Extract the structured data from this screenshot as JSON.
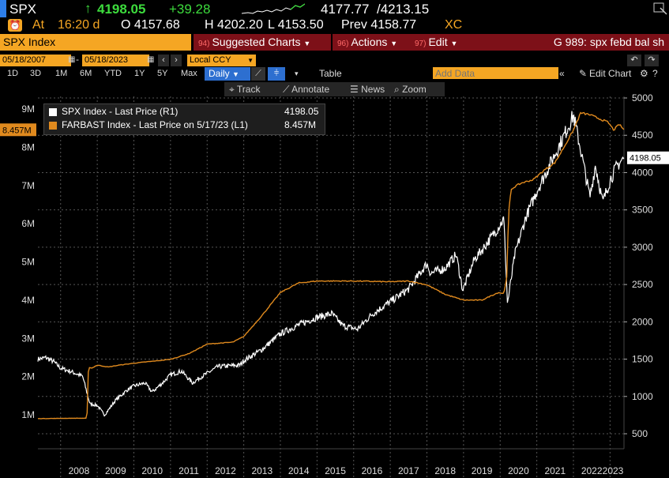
{
  "header": {
    "ticker": "SPX",
    "last": "4198.05",
    "change": "+39.28",
    "range_low": "4177.77",
    "range_high": "/4213.15",
    "at_label": "At",
    "time": "16:20 d",
    "open": "O 4157.68",
    "high": "H 4202.20",
    "low": "L 4153.50",
    "prev": "Prev 4158.77",
    "xc": "XC"
  },
  "menu": {
    "security": "SPX Index",
    "suggested": {
      "num": "94)",
      "label": "Suggested Charts"
    },
    "actions": {
      "num": "96)",
      "label": "Actions"
    },
    "edit": {
      "num": "97)",
      "label": "Edit"
    },
    "command": "G 989: spx febd bal sh"
  },
  "controls": {
    "start_date": "05/18/2007",
    "end_date": "05/18/2023",
    "currency": "Local CCY",
    "periods": [
      "1D",
      "3D",
      "1M",
      "6M",
      "YTD",
      "1Y",
      "5Y",
      "Max"
    ],
    "frequency": "Daily",
    "table": "Table",
    "add_data_placeholder": "Add Data",
    "edit_chart": "Edit Chart"
  },
  "toolbar": {
    "track": "Track",
    "annotate": "Annotate",
    "news": "News",
    "zoom": "Zoom"
  },
  "colors": {
    "spx": "#ffffff",
    "farbast": "#e08a1e",
    "background": "#000000",
    "grid": "#555555",
    "accent": "#f5a623",
    "menu_red": "#7d1018"
  },
  "chart_data": {
    "type": "line",
    "legend": [
      {
        "name": "SPX Index - Last Price (R1)",
        "value": "4198.05",
        "color": "#ffffff"
      },
      {
        "name": "FARBAST Index - Last Price on 5/17/23 (L1)",
        "value": "8.457M",
        "color": "#e08a1e"
      }
    ],
    "x_ticks": [
      "2008",
      "2009",
      "2010",
      "2011",
      "2012",
      "2013",
      "2014",
      "2015",
      "2016",
      "2017",
      "2018",
      "2019",
      "2020",
      "2021",
      "2022",
      "2023"
    ],
    "left_axis": {
      "ticks": [
        "1M",
        "2M",
        "3M",
        "4M",
        "5M",
        "6M",
        "7M",
        "8M",
        "9M"
      ],
      "range": [
        0.5,
        9.5
      ],
      "last_label": "8.457M"
    },
    "right_axis": {
      "ticks": [
        "500",
        "1000",
        "1500",
        "2000",
        "2500",
        "3000",
        "3500",
        "4000",
        "4500",
        "5000"
      ],
      "range": [
        500,
        5000
      ],
      "last_label": "4198.05"
    },
    "series": [
      {
        "name": "SPX Index - Last Price (R1)",
        "axis": "right",
        "x": [
          2007.38,
          2007.6,
          2007.8,
          2008.0,
          2008.3,
          2008.6,
          2008.8,
          2009.0,
          2009.2,
          2009.5,
          2009.8,
          2010.0,
          2010.3,
          2010.5,
          2010.8,
          2011.0,
          2011.3,
          2011.6,
          2011.8,
          2012.0,
          2012.3,
          2012.6,
          2012.9,
          2013.0,
          2013.5,
          2014.0,
          2014.5,
          2015.0,
          2015.4,
          2015.7,
          2016.1,
          2016.5,
          2017.0,
          2017.5,
          2018.0,
          2018.1,
          2018.5,
          2018.8,
          2018.98,
          2019.3,
          2019.5,
          2019.9,
          2020.1,
          2020.2,
          2020.4,
          2020.7,
          2021.0,
          2021.4,
          2021.7,
          2022.0,
          2022.2,
          2022.45,
          2022.6,
          2022.8,
          2023.0,
          2023.2,
          2023.38
        ],
        "values": [
          1500,
          1520,
          1470,
          1380,
          1330,
          1270,
          900,
          880,
          750,
          950,
          1080,
          1140,
          1180,
          1060,
          1190,
          1290,
          1340,
          1180,
          1250,
          1310,
          1400,
          1410,
          1420,
          1480,
          1630,
          1840,
          1960,
          2060,
          2110,
          1950,
          1900,
          2100,
          2270,
          2440,
          2780,
          2650,
          2720,
          2900,
          2420,
          2840,
          2960,
          3230,
          3380,
          2240,
          2900,
          3400,
          3750,
          4150,
          4450,
          4770,
          4300,
          3670,
          4100,
          3600,
          3900,
          4100,
          4198.05
        ]
      },
      {
        "name": "FARBAST Index - Last Price on 5/17/23 (L1)",
        "axis": "left",
        "x": [
          2007.38,
          2008.4,
          2008.72,
          2008.76,
          2008.85,
          2009.0,
          2009.3,
          2009.6,
          2010.0,
          2011.0,
          2011.5,
          2012.0,
          2012.7,
          2013.0,
          2013.5,
          2014.0,
          2014.5,
          2015.0,
          2016.0,
          2017.0,
          2017.5,
          2018.0,
          2018.5,
          2019.0,
          2019.5,
          2019.72,
          2019.95,
          2020.1,
          2020.18,
          2020.23,
          2020.3,
          2020.45,
          2020.6,
          2020.9,
          2021.2,
          2021.5,
          2021.8,
          2022.0,
          2022.2,
          2022.45,
          2022.7,
          2022.95,
          2023.1,
          2023.25,
          2023.38
        ],
        "values": [
          0.9,
          0.91,
          0.91,
          2.25,
          2.22,
          2.3,
          2.25,
          2.3,
          2.35,
          2.45,
          2.6,
          2.85,
          2.9,
          3.05,
          3.6,
          4.2,
          4.45,
          4.5,
          4.5,
          4.48,
          4.5,
          4.4,
          4.15,
          4.0,
          4.0,
          4.1,
          4.2,
          4.17,
          4.6,
          6.3,
          6.9,
          7.0,
          7.07,
          7.15,
          7.4,
          7.6,
          8.1,
          8.45,
          8.9,
          8.85,
          8.75,
          8.65,
          8.45,
          8.6,
          8.457
        ]
      }
    ]
  }
}
